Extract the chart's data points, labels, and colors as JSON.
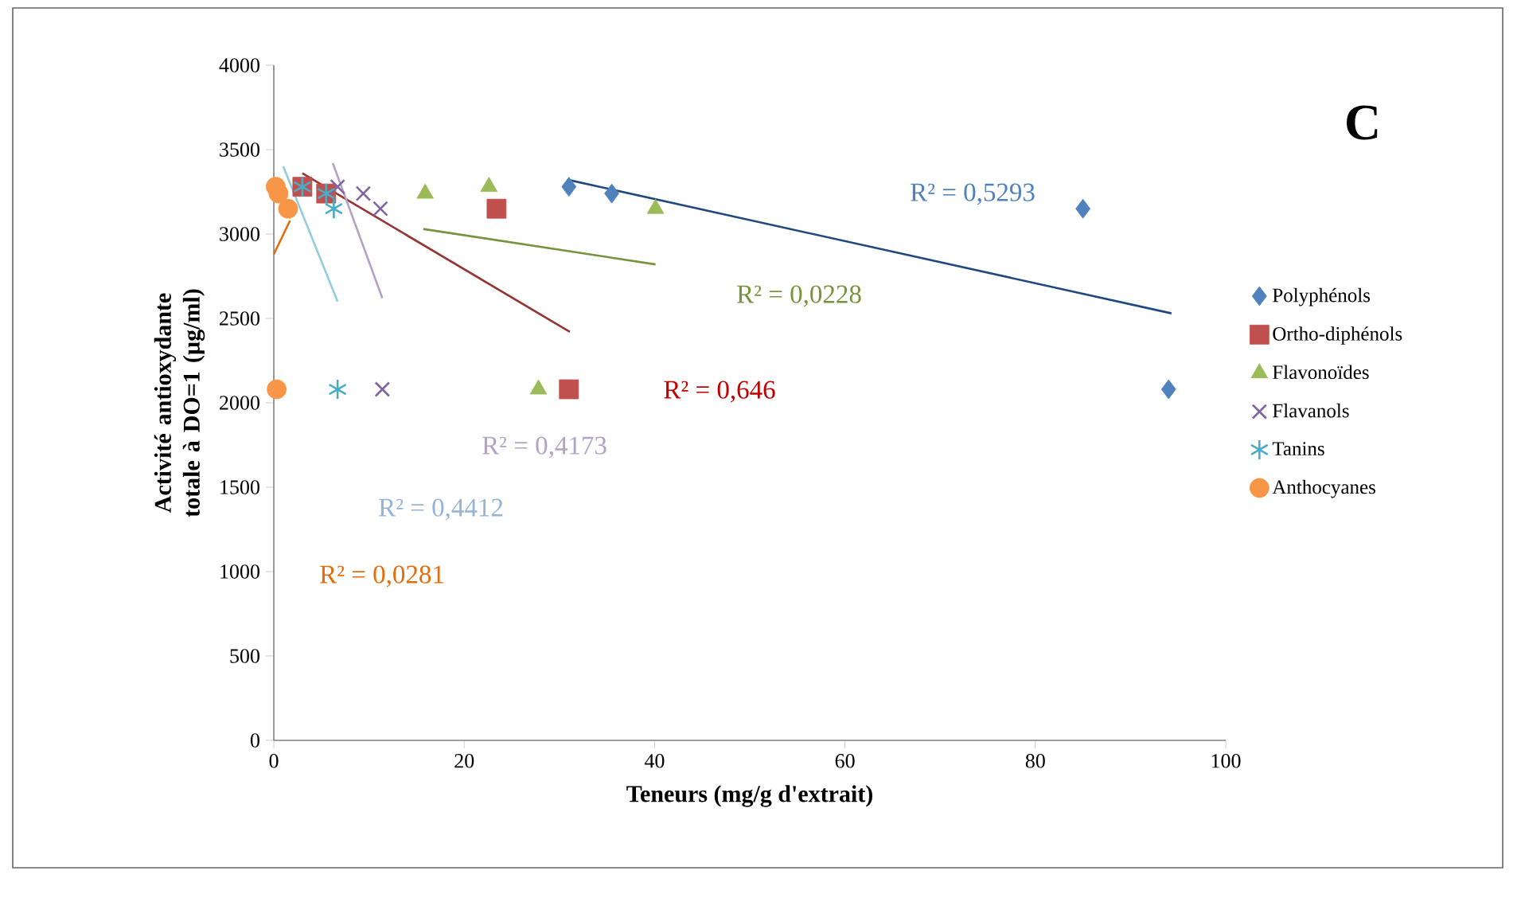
{
  "chart_data": {
    "type": "scatter",
    "xlabel": "Teneurs (mg/g d'extrait)",
    "ylabel": "Activité antioxydante totale à DO=1 (µg/ml)",
    "xlim": [
      0,
      100
    ],
    "ylim": [
      0,
      4000
    ],
    "xticks": [
      0,
      20,
      40,
      60,
      80,
      100
    ],
    "yticks": [
      0,
      500,
      1000,
      1500,
      2000,
      2500,
      3000,
      3500,
      4000
    ],
    "grid": false,
    "legend": "right",
    "series": [
      {
        "name": "Polyphénols",
        "color": "#4f81bd",
        "marker": "diamond",
        "x": [
          31,
          35.5,
          85,
          94
        ],
        "values": [
          3280,
          3240,
          3150,
          2080
        ]
      },
      {
        "name": "Ortho-diphénols",
        "color": "#c0504d",
        "marker": "square",
        "x": [
          3,
          5.5,
          23.4,
          31
        ],
        "values": [
          3280,
          3240,
          3150,
          2080
        ]
      },
      {
        "name": "Flavonoïdes",
        "color": "#9bbb59",
        "marker": "triangle",
        "x": [
          22.6,
          15.9,
          40.1,
          27.8
        ],
        "values": [
          3280,
          3240,
          3150,
          2080
        ]
      },
      {
        "name": "Flavanols",
        "color": "#8064a2",
        "marker": "cross",
        "x": [
          6.7,
          9.4,
          11.2,
          11.4
        ],
        "values": [
          3280,
          3240,
          3150,
          2080
        ]
      },
      {
        "name": "Tanins",
        "color": "#4bacc6",
        "x": [
          3,
          5.5,
          6.3,
          6.7
        ],
        "values": [
          3280,
          3240,
          3150,
          2080
        ]
      },
      {
        "name": "Anthocyanes",
        "color": "#f79646",
        "marker": "circle",
        "x": [
          0.2,
          0.5,
          1.5,
          0.3
        ],
        "values": [
          3280,
          3240,
          3150,
          2080
        ]
      },
      {
        "type": "line",
        "color": "#1f497d",
        "marker": "none",
        "x": [
          31,
          94.3
        ],
        "values": [
          3320,
          2530
        ]
      },
      {
        "type": "line",
        "color": "#943634",
        "marker": "none",
        "x": [
          3,
          31.1
        ],
        "values": [
          3360,
          2420
        ]
      },
      {
        "type": "line",
        "color": "#77933c",
        "marker": "none",
        "x": [
          15.7,
          40.1
        ],
        "values": [
          3030,
          2820
        ]
      },
      {
        "type": "line",
        "color": "#b3a2c7",
        "marker": "none",
        "x": [
          6.2,
          11.4
        ],
        "values": [
          3420,
          2620
        ]
      },
      {
        "type": "line",
        "color": "#93cddd",
        "marker": "none",
        "x": [
          1,
          6.7
        ],
        "values": [
          3400,
          2600
        ]
      },
      {
        "type": "line",
        "color": "#e46c0a",
        "marker": "none",
        "x": [
          0,
          1.7
        ],
        "values": [
          2880,
          3080
        ]
      }
    ],
    "annotations": [
      "R² = 0,5293",
      "R² = 0,646",
      "R² = 0,0228",
      "R² = 0,4173",
      "R² = 0,4412",
      "R² = 0,0281",
      "C"
    ]
  }
}
